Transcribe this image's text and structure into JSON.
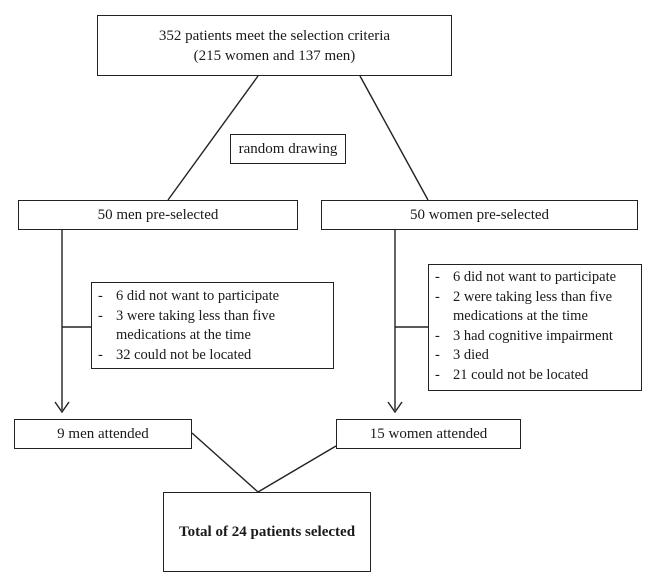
{
  "top_box": {
    "line1": "352 patients meet the selection criteria",
    "line2": "(215 women and 137 men)"
  },
  "random_drawing": "random drawing",
  "men_preselected": "50 men pre-selected",
  "women_preselected": "50 women pre-selected",
  "men_exclusions": [
    "6 did not want to participate",
    "3 were taking less than five",
    "medications at the time",
    "32 could not be located"
  ],
  "women_exclusions": [
    "6 did not want to participate",
    "2 were taking less than five",
    "medications at the time",
    "3 had cognitive impairment",
    "3 died",
    "21 could not be located"
  ],
  "men_attended": "9 men attended",
  "women_attended": "15 women attended",
  "total_selected": "Total of 24 patients selected"
}
